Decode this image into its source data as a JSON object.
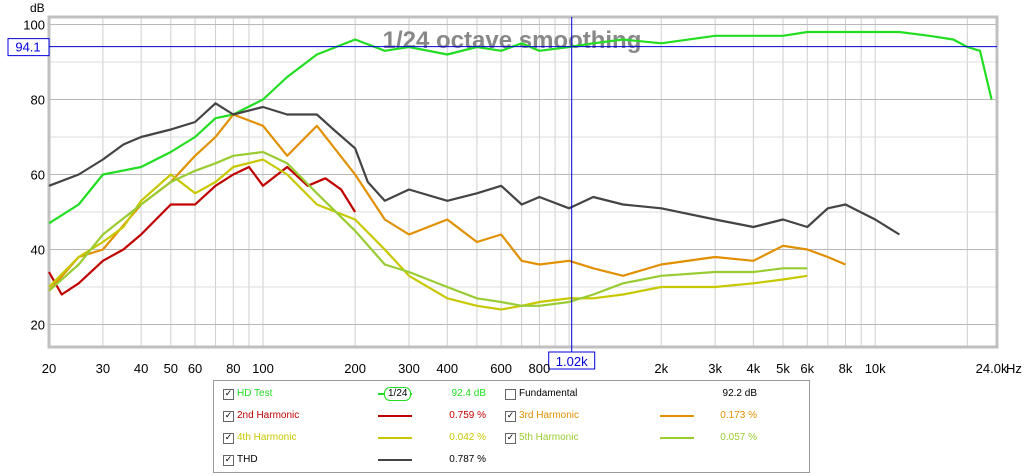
{
  "chart_data": {
    "type": "line",
    "title": "1/24 octave smoothing",
    "ylabel": "dB",
    "xunit": "Hz",
    "xscale": "log",
    "xlim": [
      20,
      25000
    ],
    "ylim": [
      14,
      102
    ],
    "x_ticks": [
      {
        "v": 20,
        "label": "20"
      },
      {
        "v": 30,
        "label": "30"
      },
      {
        "v": 40,
        "label": "40"
      },
      {
        "v": 50,
        "label": "50"
      },
      {
        "v": 60,
        "label": "60"
      },
      {
        "v": 80,
        "label": "80"
      },
      {
        "v": 100,
        "label": "100"
      },
      {
        "v": 200,
        "label": "200"
      },
      {
        "v": 300,
        "label": "300"
      },
      {
        "v": 400,
        "label": "400"
      },
      {
        "v": 600,
        "label": "600"
      },
      {
        "v": 800,
        "label": "800"
      },
      {
        "v": 2000,
        "label": "2k"
      },
      {
        "v": 3000,
        "label": "3k"
      },
      {
        "v": 4000,
        "label": "4k"
      },
      {
        "v": 5000,
        "label": "5k"
      },
      {
        "v": 6000,
        "label": "6k"
      },
      {
        "v": 8000,
        "label": "8k"
      },
      {
        "v": 10000,
        "label": "10k"
      },
      {
        "v": 24000,
        "label": "24.0k"
      }
    ],
    "y_ticks": [
      {
        "v": 20,
        "label": "20"
      },
      {
        "v": 40,
        "label": "40"
      },
      {
        "v": 60,
        "label": "60"
      },
      {
        "v": 80,
        "label": "80"
      },
      {
        "v": 100,
        "label": "100"
      }
    ],
    "grid": true,
    "cursor": {
      "x": 1020,
      "y": 94.1,
      "x_label": "1.02k",
      "y_label": "94.1"
    },
    "series": [
      {
        "name": "HD Test",
        "color": "#22dd22",
        "points": [
          [
            20,
            47
          ],
          [
            25,
            52
          ],
          [
            30,
            60
          ],
          [
            40,
            62
          ],
          [
            50,
            66
          ],
          [
            60,
            70
          ],
          [
            70,
            75
          ],
          [
            80,
            76
          ],
          [
            100,
            80
          ],
          [
            120,
            86
          ],
          [
            150,
            92
          ],
          [
            200,
            96
          ],
          [
            250,
            93
          ],
          [
            300,
            94
          ],
          [
            400,
            92
          ],
          [
            500,
            94
          ],
          [
            600,
            93
          ],
          [
            700,
            95
          ],
          [
            800,
            93
          ],
          [
            1000,
            94
          ],
          [
            1200,
            95
          ],
          [
            1500,
            96
          ],
          [
            2000,
            95
          ],
          [
            3000,
            97
          ],
          [
            4000,
            97
          ],
          [
            5000,
            97
          ],
          [
            6000,
            98
          ],
          [
            8000,
            98
          ],
          [
            10000,
            98
          ],
          [
            12000,
            98
          ],
          [
            15000,
            97
          ],
          [
            18000,
            96
          ],
          [
            20000,
            94
          ],
          [
            22000,
            93
          ],
          [
            24000,
            80
          ]
        ]
      },
      {
        "name": "2nd Harmonic",
        "color": "#c00000",
        "points": [
          [
            20,
            34
          ],
          [
            22,
            28
          ],
          [
            25,
            31
          ],
          [
            30,
            37
          ],
          [
            35,
            40
          ],
          [
            40,
            44
          ],
          [
            50,
            52
          ],
          [
            60,
            52
          ],
          [
            70,
            57
          ],
          [
            80,
            60
          ],
          [
            90,
            62
          ],
          [
            100,
            57
          ],
          [
            120,
            62
          ],
          [
            140,
            57
          ],
          [
            160,
            59
          ],
          [
            180,
            56
          ],
          [
            200,
            50
          ]
        ]
      },
      {
        "name": "3rd Harmonic",
        "color": "#e09000",
        "points": [
          [
            20,
            29
          ],
          [
            25,
            38
          ],
          [
            30,
            40
          ],
          [
            40,
            52
          ],
          [
            50,
            58
          ],
          [
            60,
            65
          ],
          [
            70,
            70
          ],
          [
            80,
            76
          ],
          [
            100,
            73
          ],
          [
            120,
            65
          ],
          [
            150,
            73
          ],
          [
            200,
            60
          ],
          [
            250,
            48
          ],
          [
            300,
            44
          ],
          [
            400,
            48
          ],
          [
            500,
            42
          ],
          [
            600,
            44
          ],
          [
            700,
            37
          ],
          [
            800,
            36
          ],
          [
            1000,
            37
          ],
          [
            1200,
            35
          ],
          [
            1500,
            33
          ],
          [
            2000,
            36
          ],
          [
            3000,
            38
          ],
          [
            4000,
            37
          ],
          [
            5000,
            41
          ],
          [
            6000,
            40
          ],
          [
            7000,
            38
          ],
          [
            8000,
            36
          ]
        ]
      },
      {
        "name": "4th Harmonic",
        "color": "#c8c800",
        "points": [
          [
            20,
            30
          ],
          [
            25,
            38
          ],
          [
            30,
            42
          ],
          [
            35,
            46
          ],
          [
            40,
            53
          ],
          [
            50,
            60
          ],
          [
            60,
            55
          ],
          [
            70,
            58
          ],
          [
            80,
            62
          ],
          [
            100,
            64
          ],
          [
            120,
            60
          ],
          [
            150,
            52
          ],
          [
            200,
            48
          ],
          [
            250,
            40
          ],
          [
            300,
            33
          ],
          [
            400,
            27
          ],
          [
            500,
            25
          ],
          [
            600,
            24
          ],
          [
            700,
            25
          ],
          [
            800,
            26
          ],
          [
            1000,
            27
          ],
          [
            1200,
            27
          ],
          [
            1500,
            28
          ],
          [
            2000,
            30
          ],
          [
            3000,
            30
          ],
          [
            4000,
            31
          ],
          [
            5000,
            32
          ],
          [
            6000,
            33
          ]
        ]
      },
      {
        "name": "5th Harmonic",
        "color": "#99cc33",
        "points": [
          [
            20,
            29
          ],
          [
            25,
            36
          ],
          [
            30,
            44
          ],
          [
            40,
            52
          ],
          [
            50,
            58
          ],
          [
            60,
            61
          ],
          [
            70,
            63
          ],
          [
            80,
            65
          ],
          [
            100,
            66
          ],
          [
            120,
            63
          ],
          [
            150,
            55
          ],
          [
            200,
            45
          ],
          [
            250,
            36
          ],
          [
            300,
            34
          ],
          [
            400,
            30
          ],
          [
            500,
            27
          ],
          [
            600,
            26
          ],
          [
            700,
            25
          ],
          [
            800,
            25
          ],
          [
            1000,
            26
          ],
          [
            1200,
            28
          ],
          [
            1500,
            31
          ],
          [
            2000,
            33
          ],
          [
            3000,
            34
          ],
          [
            4000,
            34
          ],
          [
            5000,
            35
          ],
          [
            6000,
            35
          ]
        ]
      },
      {
        "name": "THD",
        "color": "#444444",
        "points": [
          [
            20,
            57
          ],
          [
            25,
            60
          ],
          [
            30,
            64
          ],
          [
            35,
            68
          ],
          [
            40,
            70
          ],
          [
            50,
            72
          ],
          [
            60,
            74
          ],
          [
            70,
            79
          ],
          [
            80,
            76
          ],
          [
            100,
            78
          ],
          [
            120,
            76
          ],
          [
            150,
            76
          ],
          [
            170,
            72
          ],
          [
            200,
            67
          ],
          [
            220,
            58
          ],
          [
            250,
            53
          ],
          [
            300,
            56
          ],
          [
            400,
            53
          ],
          [
            500,
            55
          ],
          [
            600,
            57
          ],
          [
            700,
            52
          ],
          [
            800,
            54
          ],
          [
            1000,
            51
          ],
          [
            1200,
            54
          ],
          [
            1500,
            52
          ],
          [
            2000,
            51
          ],
          [
            3000,
            48
          ],
          [
            4000,
            46
          ],
          [
            5000,
            48
          ],
          [
            6000,
            46
          ],
          [
            7000,
            51
          ],
          [
            8000,
            52
          ],
          [
            10000,
            48
          ],
          [
            12000,
            44
          ]
        ]
      }
    ]
  },
  "legend": {
    "items": [
      {
        "name": "HD Test",
        "checked": true,
        "color": "#22dd22",
        "swatch": "1/24",
        "value": "92.4 dB"
      },
      {
        "name": "Fundamental",
        "checked": false,
        "color": "#e09000",
        "value": "92.2 dB"
      },
      {
        "name": "2nd Harmonic",
        "checked": true,
        "color": "#c00000",
        "value": "0.759 %"
      },
      {
        "name": "3rd Harmonic",
        "checked": true,
        "color": "#e09000",
        "value": "0.173 %"
      },
      {
        "name": "4th Harmonic",
        "checked": true,
        "color": "#c8c800",
        "value": "0.042 %"
      },
      {
        "name": "5th Harmonic",
        "checked": true,
        "color": "#99cc33",
        "value": "0.057 %"
      },
      {
        "name": "THD",
        "checked": true,
        "color": "#444444",
        "value": "0.787 %"
      }
    ]
  }
}
